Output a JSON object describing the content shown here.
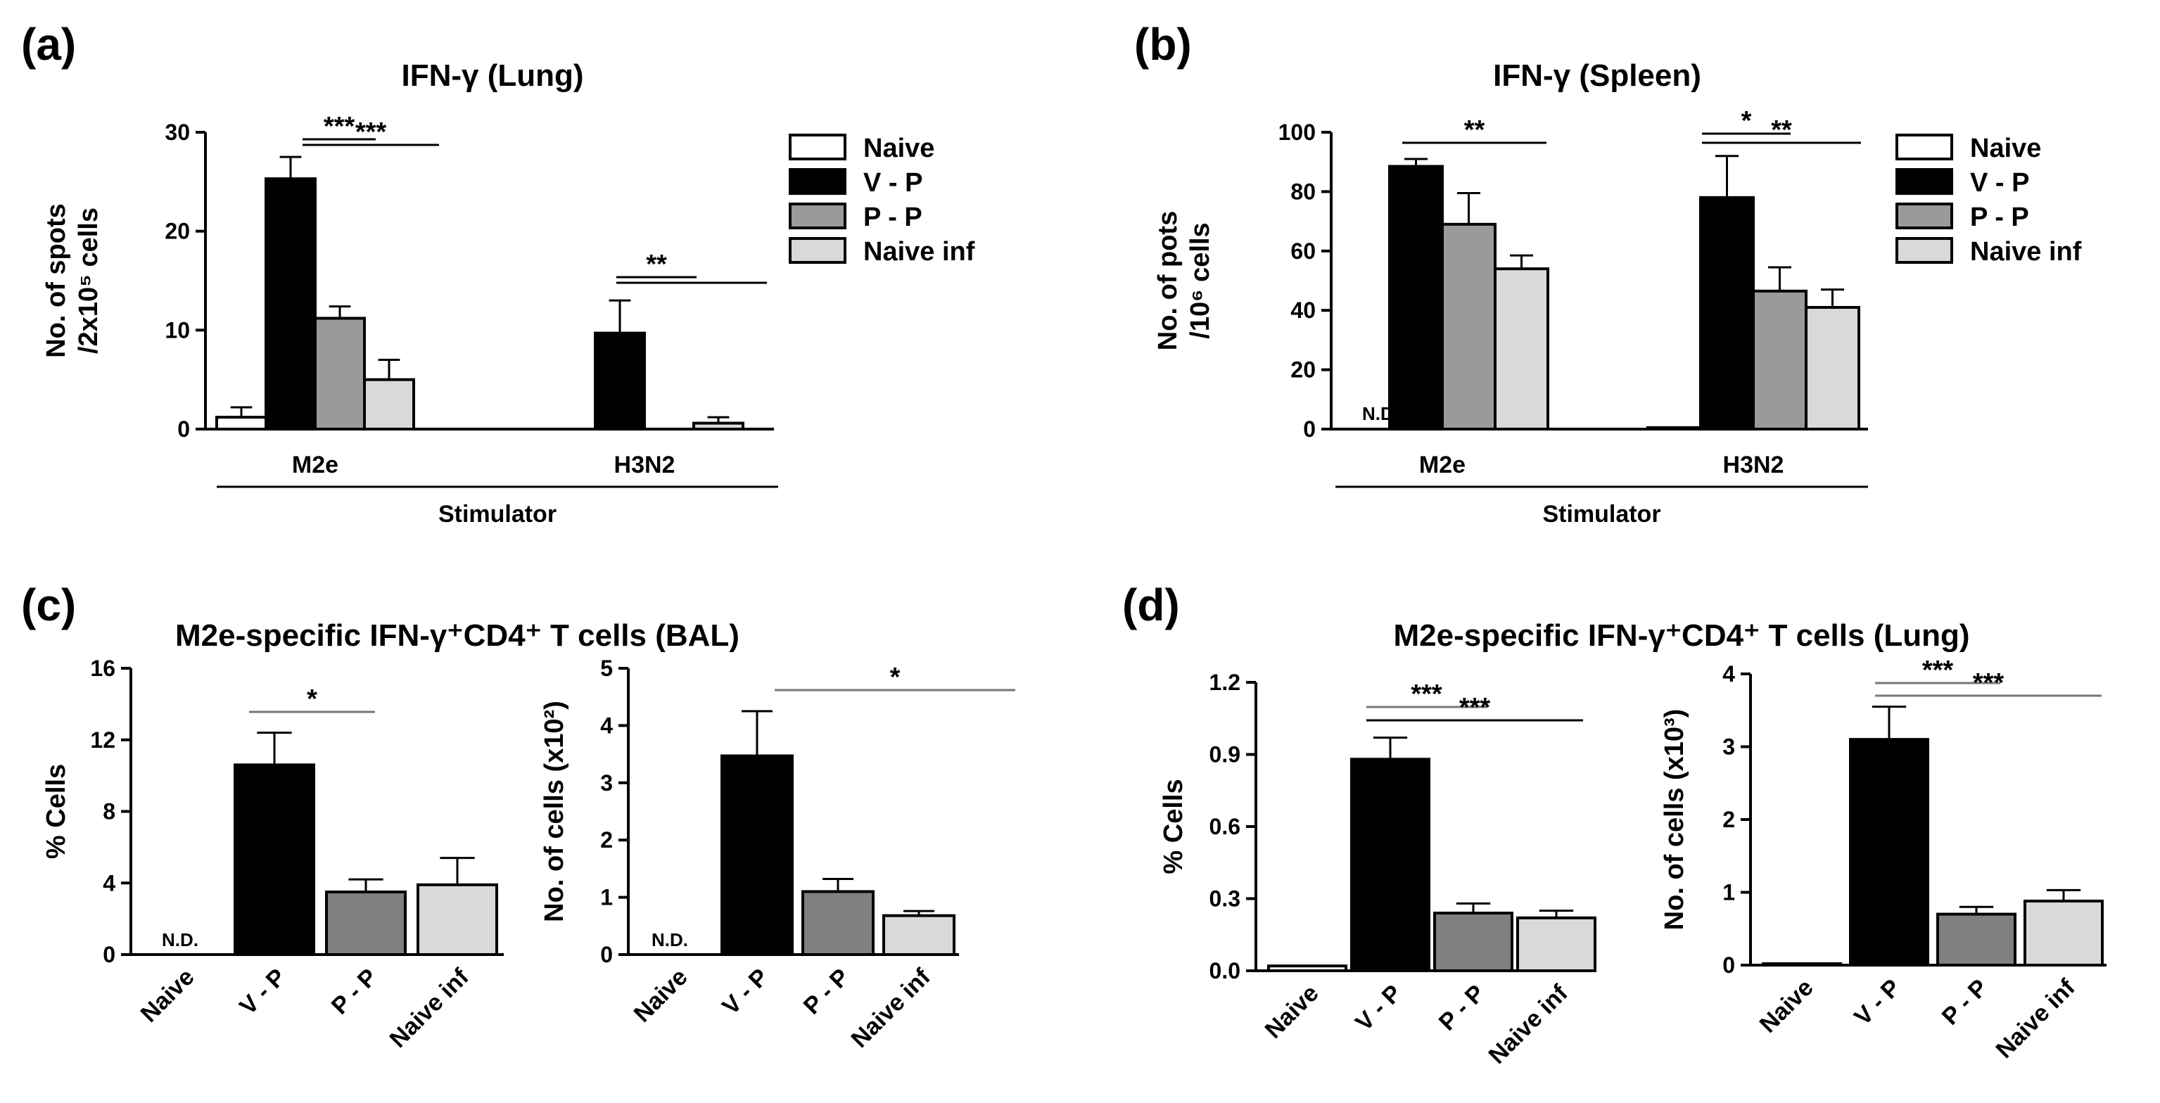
{
  "series_colors": {
    "Naive": "#ffffff",
    "V - P": "#000000",
    "P - P": "#9a9a9a",
    "Naive inf": "#d9d9d9"
  },
  "chart_data": [
    {
      "id": "a",
      "panel_label": "(a)",
      "type": "bar",
      "title": "IFN-γ (Lung)",
      "ylabel_lines": [
        "No. of spots",
        "/2x10⁵ cells"
      ],
      "xlabel": "Stimulator",
      "categories": [
        "M2e",
        "H3N2"
      ],
      "series": [
        {
          "name": "Naive",
          "values": [
            1.2,
            0
          ],
          "errors": [
            1.0,
            0
          ]
        },
        {
          "name": "V - P",
          "values": [
            25.3,
            9.7
          ],
          "errors": [
            2.2,
            3.3
          ]
        },
        {
          "name": "P - P",
          "values": [
            11.2,
            0
          ],
          "errors": [
            1.2,
            0
          ]
        },
        {
          "name": "Naive inf",
          "values": [
            5.0,
            0.6
          ],
          "errors": [
            2.0,
            0.6
          ]
        }
      ],
      "ylim": [
        0,
        30
      ],
      "yticks": [
        "0",
        "10",
        "20",
        "30"
      ],
      "annotations": [
        "***",
        "***",
        "**"
      ],
      "nd_labels": [],
      "legend": [
        "Naive",
        "V - P",
        "P - P",
        "Naive inf"
      ]
    },
    {
      "id": "b",
      "panel_label": "(b)",
      "type": "bar",
      "title": "IFN-γ (Spleen)",
      "ylabel_lines": [
        "No. of pots",
        "/10⁶ cells"
      ],
      "xlabel": "Stimulator",
      "categories": [
        "M2e",
        "H3N2"
      ],
      "series": [
        {
          "name": "Naive",
          "values": [
            0,
            0.5
          ],
          "errors": [
            0,
            0
          ]
        },
        {
          "name": "V - P",
          "values": [
            88.5,
            78.0
          ],
          "errors": [
            2.5,
            14.0
          ]
        },
        {
          "name": "P - P",
          "values": [
            69.0,
            46.5
          ],
          "errors": [
            10.5,
            8.0
          ]
        },
        {
          "name": "Naive inf",
          "values": [
            54.0,
            41.0
          ],
          "errors": [
            4.5,
            6.0
          ]
        }
      ],
      "ylim": [
        0,
        100
      ],
      "yticks": [
        "0",
        "20",
        "40",
        "60",
        "80",
        "100"
      ],
      "annotations": [
        "**",
        "*",
        "**"
      ],
      "nd_labels": [
        "N.D."
      ],
      "legend": [
        "Naive",
        "V - P",
        "P - P",
        "Naive inf"
      ]
    },
    {
      "id": "c",
      "panel_label": "(c)",
      "title": "M2e-specific IFN-γ⁺CD4⁺ T cells (BAL)",
      "subcharts": [
        {
          "type": "bar",
          "ylabel": "% Cells",
          "categories": [
            "Naive",
            "V - P",
            "P - P",
            "Naive inf"
          ],
          "values": [
            0,
            10.6,
            3.5,
            3.9
          ],
          "errors": [
            0,
            1.8,
            0.7,
            1.5
          ],
          "ylim": [
            0,
            16
          ],
          "yticks": [
            "0",
            "4",
            "8",
            "12",
            "16"
          ],
          "annotations": [
            "*"
          ],
          "nd_labels": [
            "N.D."
          ]
        },
        {
          "type": "bar",
          "ylabel": "No. of cells (x10²)",
          "categories": [
            "Naive",
            "V - P",
            "P - P",
            "Naive inf"
          ],
          "values": [
            0,
            3.47,
            1.1,
            0.68
          ],
          "errors": [
            0,
            0.78,
            0.22,
            0.08
          ],
          "ylim": [
            0,
            5
          ],
          "yticks": [
            "0",
            "1",
            "2",
            "3",
            "4",
            "5"
          ],
          "annotations": [
            "*"
          ],
          "nd_labels": [
            "N.D."
          ]
        }
      ]
    },
    {
      "id": "d",
      "panel_label": "(d)",
      "title": "M2e-specific IFN-γ⁺CD4⁺ T cells (Lung)",
      "subcharts": [
        {
          "type": "bar",
          "ylabel": "% Cells",
          "categories": [
            "Naive",
            "V - P",
            "P - P",
            "Naive inf"
          ],
          "values": [
            0.02,
            0.88,
            0.24,
            0.22
          ],
          "errors": [
            0,
            0.09,
            0.04,
            0.03
          ],
          "ylim": [
            0,
            1.2
          ],
          "yticks": [
            "0.0",
            "0.3",
            "0.6",
            "0.9",
            "1.2"
          ],
          "annotations": [
            "***"
          ],
          "nd_labels": []
        },
        {
          "type": "bar",
          "ylabel": "No. of cells (x10³)",
          "categories": [
            "Naive",
            "V - P",
            "P - P",
            "Naive inf"
          ],
          "values": [
            0.02,
            3.1,
            0.7,
            0.88
          ],
          "errors": [
            0,
            0.45,
            0.1,
            0.15
          ],
          "ylim": [
            0,
            4
          ],
          "yticks": [
            "0",
            "1",
            "2",
            "3",
            "4"
          ],
          "annotations": [
            "***"
          ],
          "nd_labels": []
        }
      ]
    }
  ]
}
